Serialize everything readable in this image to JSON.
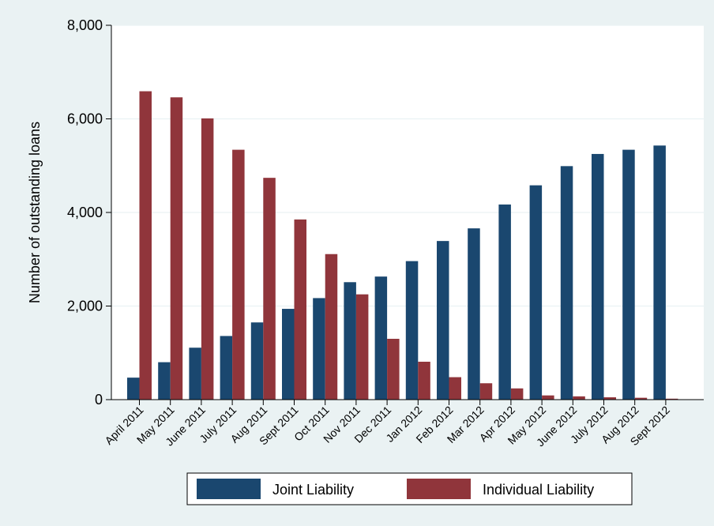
{
  "chart_data": {
    "type": "bar",
    "title": "",
    "xlabel": "",
    "ylabel": "Number of outstanding loans",
    "ylim": [
      0,
      8000
    ],
    "yticks": [
      0,
      2000,
      4000,
      6000,
      8000
    ],
    "ytick_labels": [
      "0",
      "2,000",
      "4,000",
      "6,000",
      "8,000"
    ],
    "grid": true,
    "legend_position": "bottom",
    "categories": [
      "April 2011",
      "May 2011",
      "June 2011",
      "July 2011",
      "Aug 2011",
      "Sept 2011",
      "Oct 2011",
      "Nov 2011",
      "Dec 2011",
      "Jan 2012",
      "Feb 2012",
      "Mar 2012",
      "Apr 2012",
      "May 2012",
      "June  2012",
      "July 2012",
      "Aug 2012",
      "Sept 2012"
    ],
    "series": [
      {
        "name": "Joint Liability",
        "color": "#1a476f",
        "values": [
          470,
          800,
          1110,
          1360,
          1650,
          1940,
          2170,
          2510,
          2630,
          2960,
          3390,
          3660,
          4170,
          4580,
          4990,
          5250,
          5340,
          5430
        ]
      },
      {
        "name": "Individual Liability",
        "color": "#90353b",
        "values": [
          6590,
          6460,
          6010,
          5340,
          4740,
          3850,
          3110,
          2250,
          1300,
          810,
          480,
          350,
          240,
          90,
          70,
          50,
          40,
          20
        ]
      }
    ]
  }
}
